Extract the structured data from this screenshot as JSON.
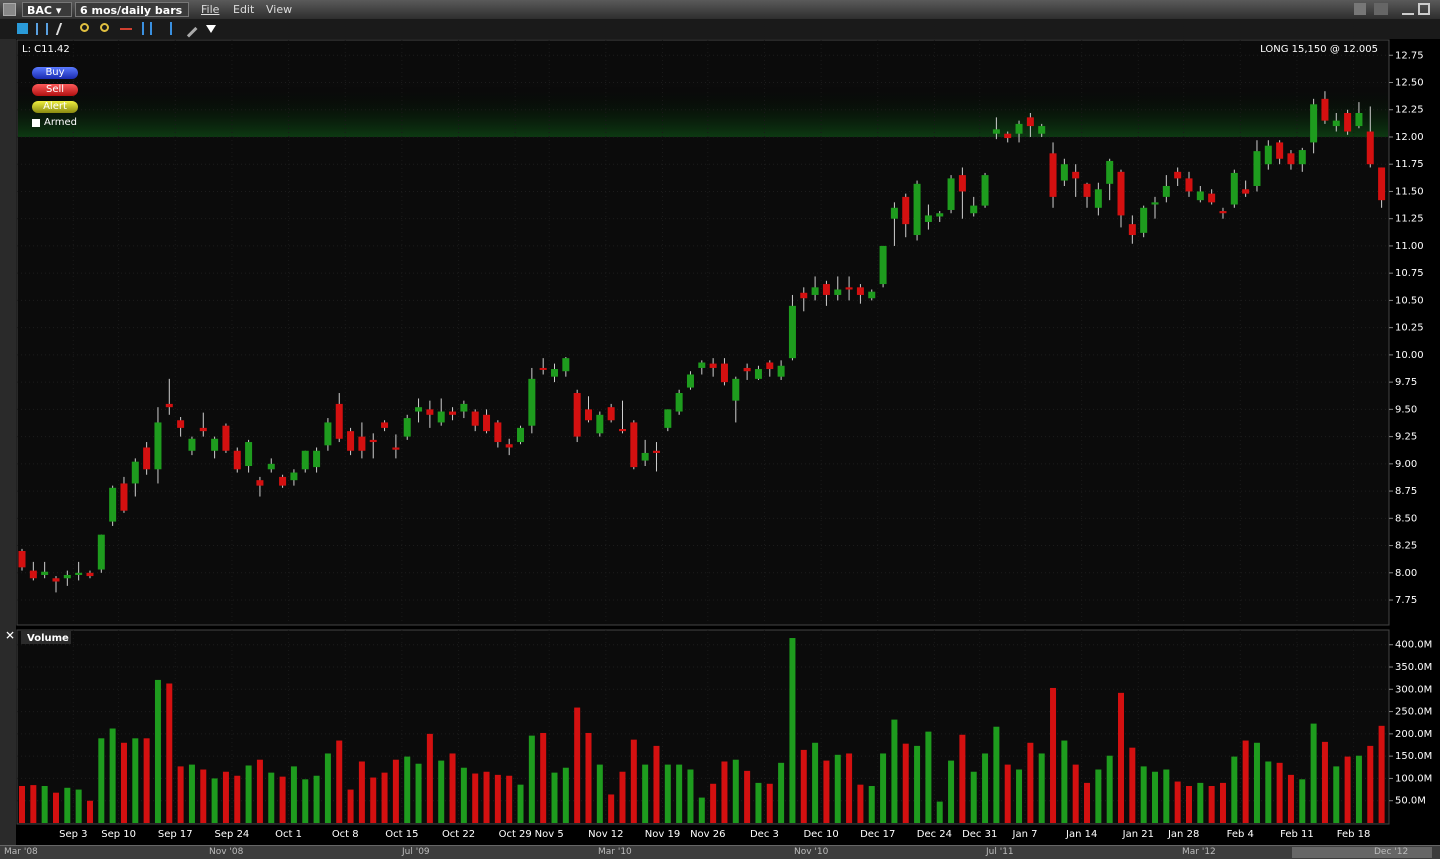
{
  "header": {
    "symbol": "BAC",
    "period": "6 mos/daily bars",
    "menus": [
      "File",
      "Edit",
      "View"
    ]
  },
  "order_panel": {
    "buttons": [
      "Buy",
      "Sell",
      "Alert"
    ],
    "armed": "Armed"
  },
  "scrollbar": {
    "labels": [
      "Mar '08",
      "Nov '08",
      "Jul '09",
      "Mar '10",
      "Nov '10",
      "Jul '11",
      "Mar '12",
      "Dec '12"
    ]
  },
  "chart_data": [
    {
      "type": "candlestick",
      "last_label": "L: C11.42",
      "position": "LONG 15,150 @ 12.005",
      "up_color": "#1e9c1e",
      "down_color": "#d41010",
      "band": [
        12.0,
        12.48
      ],
      "band_color": "#0d3a12",
      "grid": true,
      "ylim": [
        7.53,
        12.89
      ],
      "yticks": [
        {
          "value": 7.75,
          "label": "7.75"
        },
        {
          "value": 8.0,
          "label": "8.00"
        },
        {
          "value": 8.25,
          "label": "8.25"
        },
        {
          "value": 8.5,
          "label": "8.50"
        },
        {
          "value": 8.75,
          "label": "8.75"
        },
        {
          "value": 9.0,
          "label": "9.00"
        },
        {
          "value": 9.25,
          "label": "9.25"
        },
        {
          "value": 9.5,
          "label": "9.50"
        },
        {
          "value": 9.75,
          "label": "9.75"
        },
        {
          "value": 10.0,
          "label": "10.00"
        },
        {
          "value": 10.25,
          "label": "10.25"
        },
        {
          "value": 10.5,
          "label": "10.50"
        },
        {
          "value": 10.75,
          "label": "10.75"
        },
        {
          "value": 11.0,
          "label": "11.00"
        },
        {
          "value": 11.25,
          "label": "11.25"
        },
        {
          "value": 11.5,
          "label": "11.50"
        },
        {
          "value": 11.75,
          "label": "11.75"
        },
        {
          "value": 12.0,
          "label": "12.00"
        },
        {
          "value": 12.25,
          "label": "12.25"
        },
        {
          "value": 12.5,
          "label": "12.50"
        },
        {
          "value": 12.75,
          "label": "12.75"
        }
      ],
      "open": [
        8.2,
        8.02,
        7.98,
        7.95,
        7.95,
        7.98,
        8.0,
        8.03,
        8.47,
        8.82,
        8.82,
        9.15,
        8.95,
        9.55,
        9.4,
        9.12,
        9.33,
        9.12,
        9.35,
        9.12,
        8.98,
        8.85,
        8.95,
        8.88,
        8.85,
        8.95,
        8.97,
        9.17,
        9.55,
        9.3,
        9.25,
        9.22,
        9.38,
        9.15,
        9.25,
        9.48,
        9.5,
        9.38,
        9.48,
        9.48,
        9.48,
        9.45,
        9.38,
        9.18,
        9.2,
        9.35,
        9.88,
        9.8,
        9.85,
        9.65,
        9.5,
        9.28,
        9.52,
        9.32,
        9.38,
        9.03,
        9.12,
        9.33,
        9.48,
        9.7,
        9.88,
        9.92,
        9.92,
        9.58,
        9.88,
        9.78,
        9.93,
        9.8,
        9.97,
        10.57,
        10.55,
        10.65,
        10.55,
        10.62,
        10.62,
        10.52,
        10.65,
        11.25,
        11.45,
        11.1,
        11.22,
        11.27,
        11.33,
        11.65,
        11.3,
        11.37,
        12.03,
        12.03,
        12.03,
        12.18,
        12.03,
        11.85,
        11.6,
        11.68,
        11.57,
        11.35,
        11.57,
        11.68,
        11.2,
        11.12,
        11.38,
        11.45,
        11.68,
        11.62,
        11.42,
        11.48,
        11.32,
        11.38,
        11.52,
        11.55,
        11.75,
        11.95,
        11.85,
        11.75,
        11.95,
        12.35,
        12.1,
        12.22,
        12.1,
        12.05,
        11.72
      ],
      "high": [
        8.22,
        8.1,
        8.1,
        7.97,
        8.02,
        8.1,
        8.02,
        8.35,
        8.8,
        8.88,
        9.05,
        9.2,
        9.52,
        9.78,
        9.43,
        9.25,
        9.47,
        9.25,
        9.37,
        9.15,
        9.22,
        8.88,
        9.05,
        8.9,
        8.95,
        9.12,
        9.15,
        9.42,
        9.65,
        9.33,
        9.38,
        9.28,
        9.4,
        9.27,
        9.45,
        9.6,
        9.58,
        9.6,
        9.52,
        9.58,
        9.5,
        9.5,
        9.4,
        9.23,
        9.35,
        9.88,
        9.97,
        9.92,
        9.98,
        9.68,
        9.62,
        9.48,
        9.55,
        9.58,
        9.4,
        9.22,
        9.2,
        9.5,
        9.68,
        9.85,
        9.95,
        9.97,
        9.97,
        9.8,
        9.92,
        9.9,
        9.95,
        9.95,
        10.55,
        10.62,
        10.72,
        10.68,
        10.72,
        10.72,
        10.65,
        10.6,
        11.0,
        11.4,
        11.48,
        11.6,
        11.38,
        11.32,
        11.65,
        11.72,
        11.45,
        11.67,
        12.18,
        12.05,
        12.15,
        12.22,
        12.12,
        11.95,
        11.8,
        11.75,
        11.58,
        11.58,
        11.8,
        11.7,
        11.28,
        11.37,
        11.45,
        11.65,
        11.72,
        11.68,
        11.55,
        11.52,
        11.35,
        11.7,
        11.6,
        11.97,
        11.97,
        11.97,
        11.88,
        11.9,
        12.35,
        12.42,
        12.22,
        12.25,
        12.32,
        12.28,
        11.72
      ],
      "low": [
        8.02,
        7.93,
        7.95,
        7.82,
        7.88,
        7.93,
        7.95,
        8.0,
        8.43,
        8.55,
        8.7,
        8.9,
        8.82,
        9.45,
        9.25,
        9.08,
        9.25,
        9.05,
        9.1,
        8.92,
        8.92,
        8.7,
        8.92,
        8.78,
        8.8,
        8.92,
        8.92,
        9.12,
        9.2,
        9.08,
        9.05,
        9.05,
        9.3,
        9.05,
        9.22,
        9.38,
        9.33,
        9.35,
        9.4,
        9.42,
        9.3,
        9.28,
        9.15,
        9.08,
        9.18,
        9.28,
        9.82,
        9.75,
        9.8,
        9.2,
        9.38,
        9.25,
        9.38,
        9.28,
        8.95,
        8.98,
        8.93,
        9.3,
        9.45,
        9.68,
        9.82,
        9.8,
        9.72,
        9.38,
        9.77,
        9.77,
        9.8,
        9.77,
        9.95,
        10.4,
        10.5,
        10.45,
        10.5,
        10.5,
        10.47,
        10.5,
        10.62,
        11.0,
        11.08,
        11.05,
        11.15,
        11.22,
        11.3,
        11.25,
        11.27,
        11.35,
        11.98,
        11.95,
        11.95,
        12.0,
        12.0,
        11.35,
        11.55,
        11.45,
        11.35,
        11.28,
        11.42,
        11.17,
        11.02,
        11.08,
        11.25,
        11.4,
        11.55,
        11.45,
        11.4,
        11.38,
        11.25,
        11.35,
        11.45,
        11.5,
        11.7,
        11.75,
        11.7,
        11.68,
        11.85,
        12.12,
        12.05,
        12.02,
        12.08,
        11.72,
        11.35
      ],
      "close": [
        8.05,
        7.95,
        8.01,
        7.92,
        7.98,
        8.0,
        7.97,
        8.35,
        8.78,
        8.57,
        9.02,
        8.95,
        9.38,
        9.52,
        9.33,
        9.23,
        9.3,
        9.23,
        9.12,
        8.95,
        9.2,
        8.8,
        9.0,
        8.8,
        8.92,
        9.12,
        9.12,
        9.38,
        9.23,
        9.12,
        9.12,
        9.2,
        9.33,
        9.13,
        9.42,
        9.52,
        9.45,
        9.48,
        9.45,
        9.55,
        9.35,
        9.3,
        9.2,
        9.15,
        9.33,
        9.78,
        9.87,
        9.87,
        9.97,
        9.25,
        9.4,
        9.45,
        9.4,
        9.3,
        8.97,
        9.1,
        9.1,
        9.5,
        9.65,
        9.82,
        9.93,
        9.88,
        9.75,
        9.78,
        9.85,
        9.87,
        9.87,
        9.9,
        10.45,
        10.52,
        10.62,
        10.55,
        10.6,
        10.6,
        10.55,
        10.58,
        11.0,
        11.35,
        11.2,
        11.57,
        11.28,
        11.3,
        11.62,
        11.5,
        11.37,
        11.65,
        12.07,
        11.99,
        12.12,
        12.1,
        12.1,
        11.45,
        11.75,
        11.62,
        11.45,
        11.52,
        11.78,
        11.28,
        11.1,
        11.35,
        11.4,
        11.55,
        11.62,
        11.5,
        11.5,
        11.4,
        11.3,
        11.67,
        11.48,
        11.87,
        11.92,
        11.8,
        11.75,
        11.88,
        12.3,
        12.15,
        12.15,
        12.05,
        12.22,
        11.75,
        11.42
      ]
    },
    {
      "type": "bar",
      "title": "Volume",
      "grid": true,
      "ylim": [
        0,
        433
      ],
      "yticks": [
        {
          "value": 50,
          "label": "50.0M"
        },
        {
          "value": 100,
          "label": "100.0M"
        },
        {
          "value": 150,
          "label": "150.0M"
        },
        {
          "value": 200,
          "label": "200.0M"
        },
        {
          "value": 250,
          "label": "250.0M"
        },
        {
          "value": 300,
          "label": "300.0M"
        },
        {
          "value": 350,
          "label": "350.0M"
        },
        {
          "value": 400,
          "label": "400.0M"
        }
      ],
      "categories": [
        null,
        null,
        null,
        null,
        "Sep 3",
        null,
        null,
        null,
        "Sep 10",
        null,
        null,
        null,
        null,
        "Sep 17",
        null,
        null,
        null,
        null,
        "Sep 24",
        null,
        null,
        null,
        null,
        "Oct 1",
        null,
        null,
        null,
        null,
        "Oct 8",
        null,
        null,
        null,
        null,
        "Oct 15",
        null,
        null,
        null,
        null,
        "Oct 22",
        null,
        null,
        null,
        null,
        "Oct 29",
        null,
        null,
        "Nov 5",
        null,
        null,
        null,
        null,
        "Nov 12",
        null,
        null,
        null,
        null,
        "Nov 19",
        null,
        null,
        null,
        "Nov 26",
        null,
        null,
        null,
        null,
        "Dec 3",
        null,
        null,
        null,
        null,
        "Dec 10",
        null,
        null,
        null,
        null,
        "Dec 17",
        null,
        null,
        null,
        null,
        "Dec 24",
        null,
        null,
        null,
        "Dec 31",
        null,
        null,
        null,
        "Jan 7",
        null,
        null,
        null,
        null,
        "Jan 14",
        null,
        null,
        null,
        null,
        "Jan 21",
        null,
        null,
        null,
        "Jan 28",
        null,
        null,
        null,
        null,
        "Feb 4",
        null,
        null,
        null,
        null,
        "Feb 11",
        null,
        null,
        null,
        null,
        "Feb 18",
        null,
        null,
        null
      ],
      "values": [
        83,
        85,
        83,
        68,
        79,
        75,
        50,
        190,
        212,
        180,
        190,
        190,
        321,
        313,
        127,
        131,
        120,
        100,
        115,
        106,
        129,
        142,
        113,
        104,
        127,
        98,
        106,
        156,
        185,
        75,
        138,
        102,
        113,
        142,
        149,
        133,
        200,
        140,
        156,
        124,
        111,
        115,
        108,
        106,
        86,
        196,
        202,
        113,
        124,
        259,
        202,
        131,
        64,
        115,
        187,
        131,
        173,
        131,
        131,
        120,
        57,
        88,
        138,
        142,
        117,
        90,
        88,
        135,
        415,
        164,
        180,
        140,
        153,
        156,
        86,
        83,
        156,
        232,
        178,
        173,
        205,
        48,
        140,
        198,
        115,
        156,
        216,
        131,
        120,
        180,
        156,
        303,
        185,
        131,
        90,
        120,
        151,
        292,
        169,
        127,
        115,
        120,
        93,
        83,
        90,
        83,
        90,
        149,
        185,
        180,
        138,
        135,
        108,
        98,
        223,
        182,
        127,
        149,
        151,
        173,
        218
      ]
    }
  ]
}
